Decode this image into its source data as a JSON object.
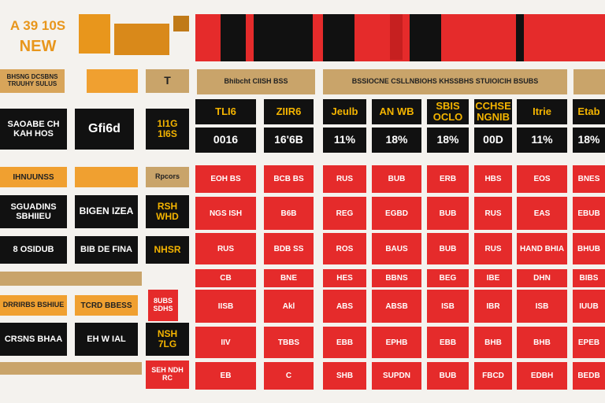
{
  "header": {
    "badge_line1": "A 39 10S",
    "badge_line2": "NEW"
  },
  "left_panel": {
    "cells": [
      "BHSNG DCSBNS TRUUHY SULUS",
      "T",
      "SAOABE CH KAH HOS",
      "Gfi6d",
      "1I1G 1I6S",
      "IHNUUNSS",
      "Rpcors",
      "SGUADINS SBHIIEU",
      "BIGEN IZEA",
      "RSH WHD",
      "8 OSIDUB",
      "BIB DE FINA",
      "NHSR",
      "DRRIRBS BSHIUE",
      "TCRD BBESS",
      "8UBS SDHS",
      "CRSNS BHAA",
      "EH W IAL",
      "NSH 7LG",
      "SEH NDH RC"
    ]
  },
  "table": {
    "banners": [
      "Bhibcht CIISH BSS",
      "BSSIOCNE CSLLNBIOHS KHSSBHS STUIOICIH BSUBS"
    ],
    "columns": [
      "TLI6",
      "ZIIR6",
      "Jeulb",
      "AN WB",
      "SBIS OCLO",
      "CCHSE NGNIB",
      "Itrie",
      "Etab"
    ],
    "summary": [
      "0016",
      "16'6B",
      "11%",
      "18%",
      "18%",
      "00D",
      "11%",
      "18%"
    ],
    "rows": [
      [
        "EOH BS",
        "BCB BS",
        "RUS",
        "BUB",
        "ERB",
        "HBS",
        "EOS",
        "BNES"
      ],
      [
        "NGS ISH",
        "B6B",
        "REG",
        "EGBD",
        "BUB",
        "RUS",
        "EAS",
        "EBUB"
      ],
      [
        "RUS",
        "BDB SS",
        "ROS",
        "BAUS",
        "BUB",
        "RUS",
        "HAND BHIA",
        "BHUB"
      ],
      [
        "CB",
        "BNE",
        "HES",
        "BBNS",
        "BEG",
        "IBE",
        "DHN",
        "BIBS"
      ],
      [
        "IISB",
        "Akl",
        "ABS",
        "ABSB",
        "ISB",
        "IBR",
        "ISB",
        "IUUB"
      ],
      [
        "IIV",
        "TBBS",
        "EBB",
        "EPHB",
        "EBB",
        "BHB",
        "BHB",
        "EPEB"
      ],
      [
        "EB",
        "C",
        "SHB",
        "SUPDN",
        "BUB",
        "FBCD",
        "EDBH",
        "BEDB"
      ]
    ]
  }
}
